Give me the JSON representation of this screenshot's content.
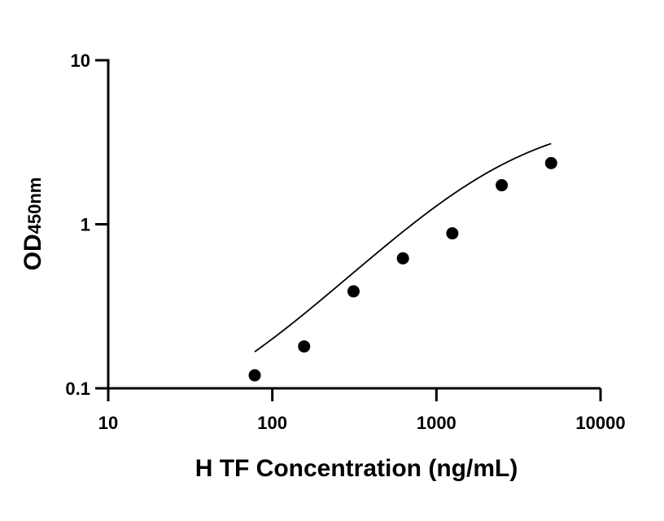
{
  "chart_data": {
    "type": "scatter",
    "xlabel": "H TF Concentration (ng/mL)",
    "ylabel": {
      "main": "OD",
      "subscript": "450nm"
    },
    "x_scale": "log",
    "y_scale": "log",
    "xlim": [
      10,
      10000
    ],
    "ylim": [
      0.1,
      10
    ],
    "x_ticks": [
      10,
      100,
      1000,
      10000
    ],
    "x_tick_labels": [
      "10",
      "100",
      "1000",
      "10000"
    ],
    "y_ticks": [
      0.1,
      1,
      10
    ],
    "y_tick_labels": [
      "0.1",
      "1",
      "10"
    ],
    "grid": false,
    "legend": "none",
    "points": [
      {
        "x": 78.125,
        "y": 0.12
      },
      {
        "x": 156.25,
        "y": 0.18
      },
      {
        "x": 312.5,
        "y": 0.39
      },
      {
        "x": 625,
        "y": 0.62
      },
      {
        "x": 1250,
        "y": 0.88
      },
      {
        "x": 2500,
        "y": 1.73
      },
      {
        "x": 5000,
        "y": 2.36
      }
    ],
    "fit_curve": {
      "type": "4PL",
      "bottom": 0.05,
      "top": 4.65,
      "ec50": 2600,
      "hill": 1.04,
      "x_range": [
        78.125,
        5000
      ]
    },
    "colors": {
      "axis": "#000000",
      "points": "#000000",
      "curve": "#000000"
    }
  }
}
